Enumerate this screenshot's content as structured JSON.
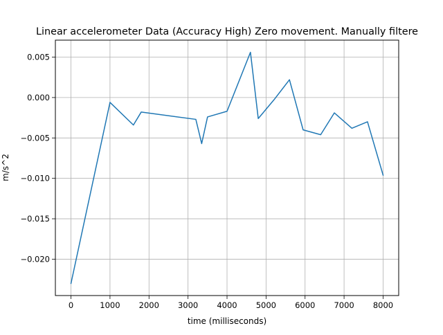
{
  "chart_data": {
    "type": "line",
    "title": "Linear accelerometer Data (Accuracy High) Zero movement. Manually filtere",
    "xlabel": "time (milliseconds)",
    "ylabel": "m/s^2",
    "xlim": [
      -400,
      8400
    ],
    "ylim": [
      -0.0245,
      0.0071
    ],
    "grid": true,
    "x_ticks": [
      0,
      1000,
      2000,
      3000,
      4000,
      5000,
      6000,
      7000,
      8000
    ],
    "y_ticks": [
      -0.02,
      -0.015,
      -0.01,
      -0.005,
      0.0,
      0.005
    ],
    "x_tick_labels": [
      "0",
      "1000",
      "2000",
      "3000",
      "4000",
      "5000",
      "6000",
      "7000",
      "8000"
    ],
    "y_tick_labels": [
      "−0.020",
      "−0.015",
      "−0.010",
      "−0.005",
      "0.000",
      "0.005"
    ],
    "series": [
      {
        "color": "#1f77b4",
        "x": [
          0,
          1000,
          1600,
          1800,
          3200,
          3350,
          3500,
          4000,
          4600,
          4800,
          5200,
          5600,
          5950,
          6400,
          6750,
          7200,
          7600,
          8000
        ],
        "y": [
          -0.023,
          -0.0006,
          -0.0034,
          -0.0018,
          -0.0027,
          -0.0057,
          -0.0024,
          -0.0017,
          0.0056,
          -0.0026,
          -0.0003,
          0.0022,
          -0.004,
          -0.0046,
          -0.0019,
          -0.0038,
          -0.003,
          -0.0096
        ]
      }
    ]
  }
}
